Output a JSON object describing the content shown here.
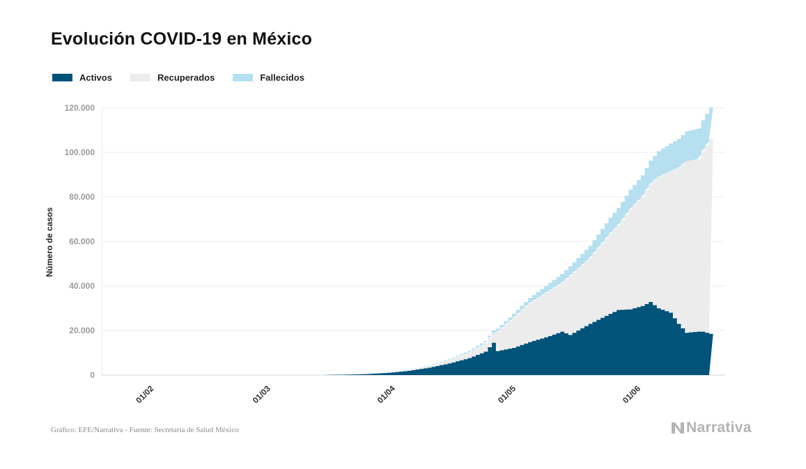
{
  "title": "Evolución COVID-19 en México",
  "legend": [
    {
      "label": "Activos",
      "color": "#01537a"
    },
    {
      "label": "Recuperados",
      "color": "#ececec"
    },
    {
      "label": "Fallecidos",
      "color": "#b6e0ef"
    }
  ],
  "footer": {
    "source": "Gráfico: EFE/Narrativa - Fuente: Secretaría de Salud México",
    "brand": "Narrativa"
  },
  "chart_data": {
    "type": "area",
    "stacked": true,
    "step": true,
    "title": "Evolución COVID-19 en México",
    "xlabel": "",
    "ylabel": "Número de casos",
    "ylim": [
      0,
      120000
    ],
    "xlim": [
      "2020-01-20",
      "2020-06-23"
    ],
    "grid": true,
    "legend_position": "top-left",
    "yticks": [
      0,
      20000,
      40000,
      60000,
      80000,
      100000,
      120000
    ],
    "ytick_labels": [
      "0",
      "20.000",
      "40.000",
      "60.000",
      "80.000",
      "100.000",
      "120.000"
    ],
    "xticks": [
      "2020-02-01",
      "2020-03-01",
      "2020-04-01",
      "2020-05-01",
      "2020-06-01"
    ],
    "xtick_labels": [
      "01/02",
      "01/03",
      "01/04",
      "01/05",
      "01/06"
    ],
    "series_order": [
      "Activos",
      "Recuperados",
      "Fallecidos"
    ],
    "anchors": [
      {
        "date": "2020-03-15",
        "activos": 50,
        "recuperados": 0,
        "fallecidos": 0
      },
      {
        "date": "2020-03-20",
        "activos": 200,
        "recuperados": 0,
        "fallecidos": 2
      },
      {
        "date": "2020-03-25",
        "activos": 420,
        "recuperados": 5,
        "fallecidos": 6
      },
      {
        "date": "2020-03-31",
        "activos": 1000,
        "recuperados": 40,
        "fallecidos": 30
      },
      {
        "date": "2020-04-05",
        "activos": 1900,
        "recuperados": 300,
        "fallecidos": 100
      },
      {
        "date": "2020-04-10",
        "activos": 3300,
        "recuperados": 800,
        "fallecidos": 200
      },
      {
        "date": "2020-04-15",
        "activos": 5200,
        "recuperados": 1500,
        "fallecidos": 450
      },
      {
        "date": "2020-04-20",
        "activos": 7600,
        "recuperados": 2600,
        "fallecidos": 700
      },
      {
        "date": "2020-04-24",
        "activos": 10500,
        "recuperados": 3700,
        "fallecidos": 1100
      },
      {
        "date": "2020-04-26",
        "activos": 14500,
        "recuperados": 4200,
        "fallecidos": 1300
      },
      {
        "date": "2020-04-27",
        "activos": 10800,
        "recuperados": 8700,
        "fallecidos": 1350
      },
      {
        "date": "2020-05-01",
        "activos": 12200,
        "recuperados": 13500,
        "fallecidos": 1900
      },
      {
        "date": "2020-05-05",
        "activos": 14800,
        "recuperados": 17500,
        "fallecidos": 2300
      },
      {
        "date": "2020-05-10",
        "activos": 17500,
        "recuperados": 20500,
        "fallecidos": 3400
      },
      {
        "date": "2020-05-13",
        "activos": 19500,
        "recuperados": 22000,
        "fallecidos": 3900
      },
      {
        "date": "2020-05-15",
        "activos": 18000,
        "recuperados": 26500,
        "fallecidos": 4400
      },
      {
        "date": "2020-05-20",
        "activos": 23000,
        "recuperados": 29500,
        "fallecidos": 5600
      },
      {
        "date": "2020-05-25",
        "activos": 27500,
        "recuperados": 36000,
        "fallecidos": 7200
      },
      {
        "date": "2020-05-27",
        "activos": 29200,
        "recuperados": 38000,
        "fallecidos": 7800
      },
      {
        "date": "2020-05-30",
        "activos": 29500,
        "recuperados": 45000,
        "fallecidos": 8800
      },
      {
        "date": "2020-06-02",
        "activos": 31000,
        "recuperados": 49000,
        "fallecidos": 9700
      },
      {
        "date": "2020-06-04",
        "activos": 32800,
        "recuperados": 53000,
        "fallecidos": 10500
      },
      {
        "date": "2020-06-06",
        "activos": 30000,
        "recuperados": 59000,
        "fallecidos": 11500
      },
      {
        "date": "2020-06-09",
        "activos": 28000,
        "recuperados": 63500,
        "fallecidos": 12500
      },
      {
        "date": "2020-06-11",
        "activos": 23000,
        "recuperados": 70000,
        "fallecidos": 13000
      },
      {
        "date": "2020-06-13",
        "activos": 19000,
        "recuperados": 77000,
        "fallecidos": 13500
      },
      {
        "date": "2020-06-16",
        "activos": 19500,
        "recuperados": 77500,
        "fallecidos": 13800
      },
      {
        "date": "2020-06-17",
        "activos": 19500,
        "recuperados": 81000,
        "fallecidos": 14000
      },
      {
        "date": "2020-06-19",
        "activos": 18500,
        "recuperados": 87500,
        "fallecidos": 14200
      }
    ]
  }
}
